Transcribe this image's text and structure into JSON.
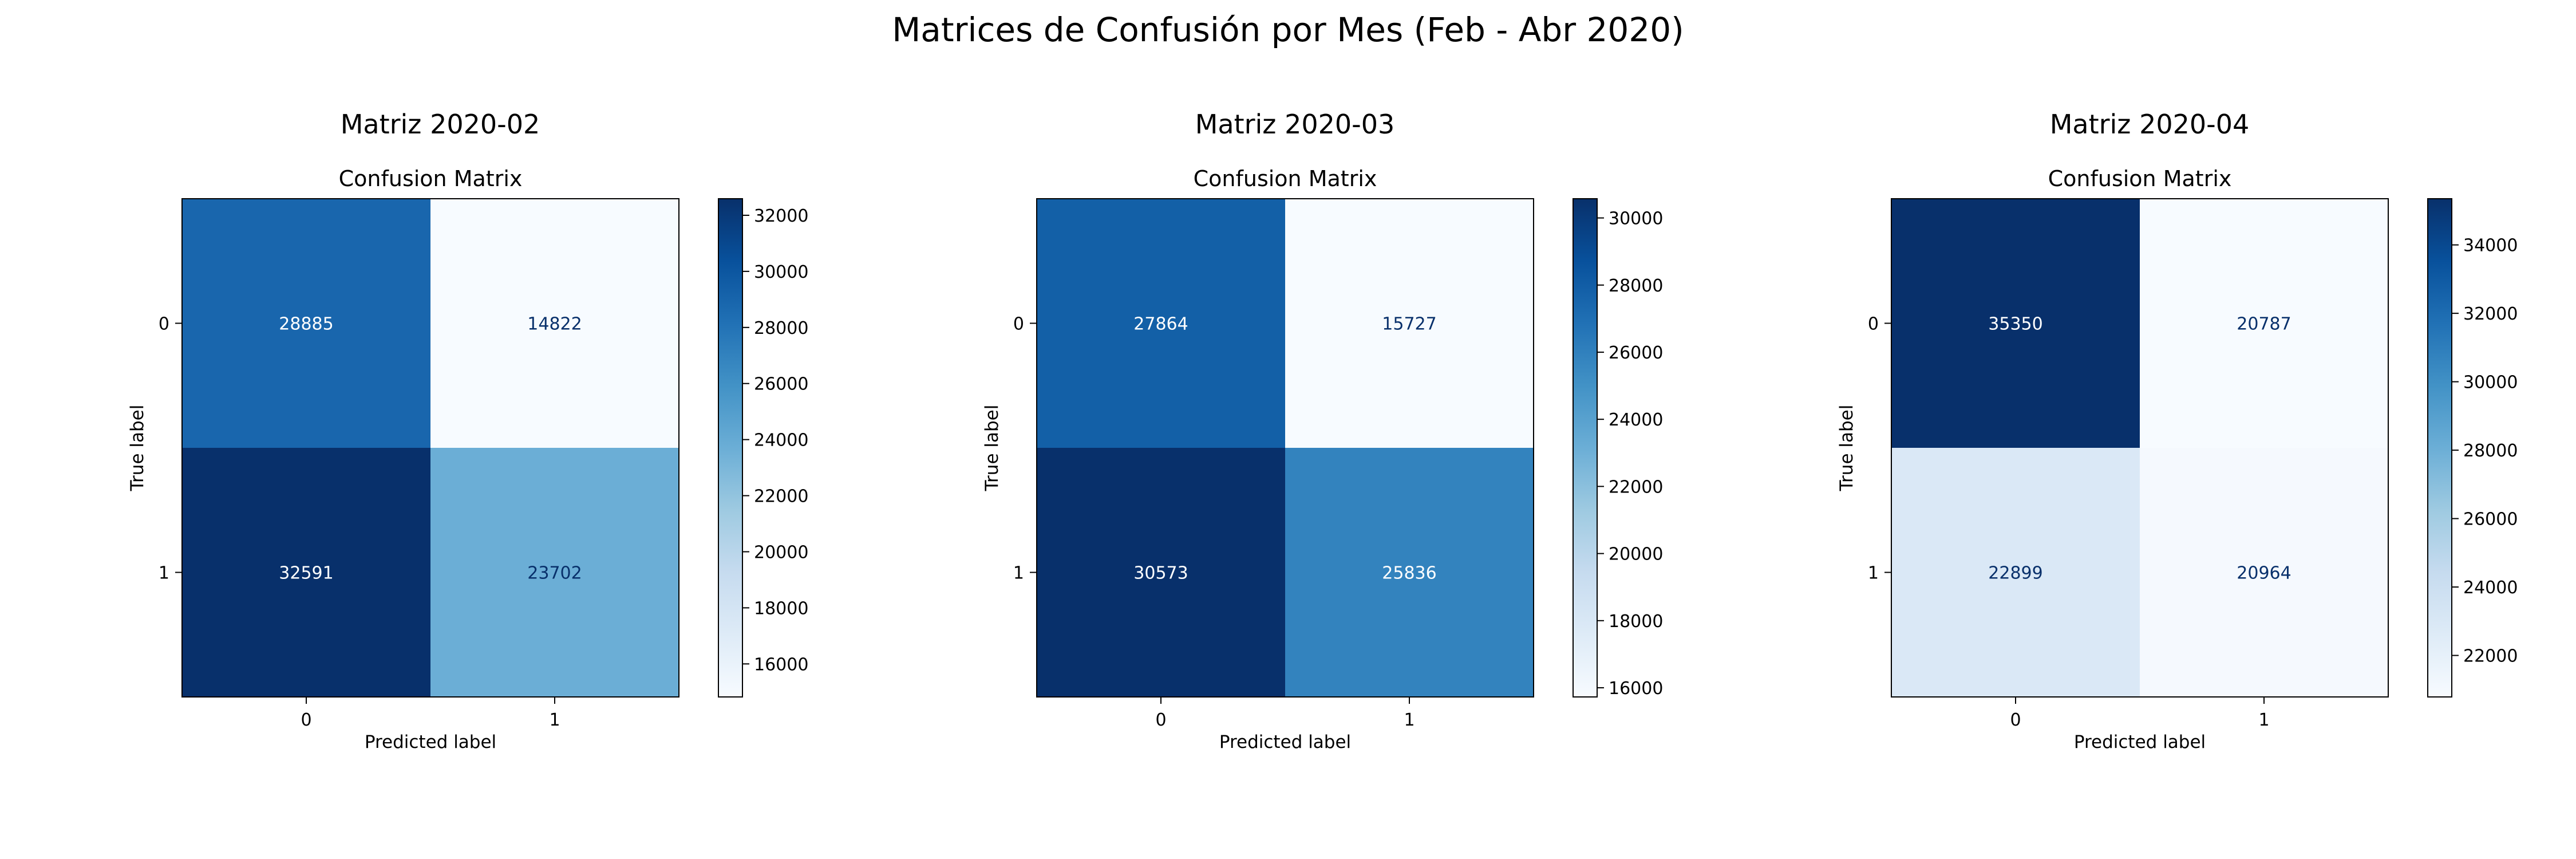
{
  "figure": {
    "title": "Matrices de Confusión por Mes (Feb - Abr 2020)"
  },
  "chart_data": [
    {
      "type": "heatmap",
      "panel_title": "Matriz 2020-02",
      "title": "Confusion Matrix",
      "xlabel": "Predicted label",
      "ylabel": "True label",
      "x_tick_labels": [
        "0",
        "1"
      ],
      "y_tick_labels": [
        "0",
        "1"
      ],
      "values": [
        [
          28885,
          14822
        ],
        [
          32591,
          23702
        ]
      ],
      "colormap": "Blues",
      "colorbar_ticks": [
        16000,
        18000,
        20000,
        22000,
        24000,
        26000,
        28000,
        30000,
        32000
      ],
      "grid": false
    },
    {
      "type": "heatmap",
      "panel_title": "Matriz 2020-03",
      "title": "Confusion Matrix",
      "xlabel": "Predicted label",
      "ylabel": "True label",
      "x_tick_labels": [
        "0",
        "1"
      ],
      "y_tick_labels": [
        "0",
        "1"
      ],
      "values": [
        [
          27864,
          15727
        ],
        [
          30573,
          25836
        ]
      ],
      "colormap": "Blues",
      "colorbar_ticks": [
        16000,
        18000,
        20000,
        22000,
        24000,
        26000,
        28000,
        30000
      ],
      "grid": false
    },
    {
      "type": "heatmap",
      "panel_title": "Matriz 2020-04",
      "title": "Confusion Matrix",
      "xlabel": "Predicted label",
      "ylabel": "True label",
      "x_tick_labels": [
        "0",
        "1"
      ],
      "y_tick_labels": [
        "0",
        "1"
      ],
      "values": [
        [
          35350,
          20787
        ],
        [
          22899,
          20964
        ]
      ],
      "colormap": "Blues",
      "colorbar_ticks": [
        22000,
        24000,
        26000,
        28000,
        30000,
        32000,
        34000
      ],
      "grid": false
    }
  ]
}
